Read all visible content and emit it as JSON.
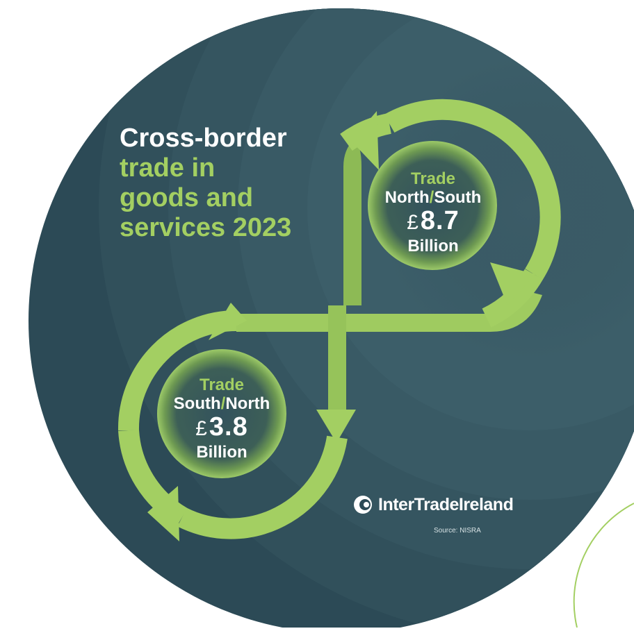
{
  "title": {
    "line1": "Cross-border",
    "line2": "trade in",
    "line3": "goods and",
    "line4": "services 2023"
  },
  "north_south": {
    "label_top": "Trade",
    "label_a": "North",
    "label_sep": "/",
    "label_b": "South",
    "currency": "£",
    "amount": "8.7",
    "unit": "Billion"
  },
  "south_north": {
    "label_top": "Trade",
    "label_a": "South",
    "label_sep": "/",
    "label_b": "North",
    "currency": "£",
    "amount": "3.8",
    "unit": "Billion"
  },
  "logo": {
    "name": "InterTradeIreland",
    "icon": "intertradeireland-swirl-icon"
  },
  "source": "Source: NISRA",
  "colors": {
    "background": "#2c4a56",
    "accent_green": "#a3cf62",
    "text_white": "#ffffff"
  }
}
